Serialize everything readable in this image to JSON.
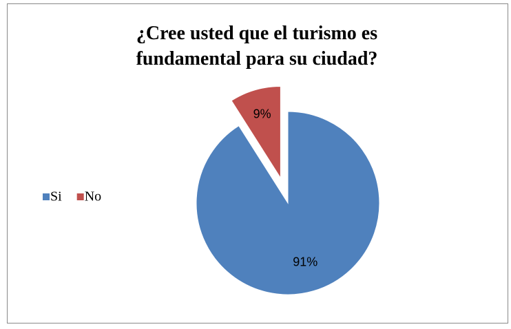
{
  "chart_data": {
    "type": "pie",
    "title": "¿Cree usted que el turismo es fundamental para su ciudad?",
    "categories": [
      "Si",
      "No"
    ],
    "values": [
      91,
      9
    ],
    "value_labels": [
      "91%",
      "9%"
    ],
    "colors": [
      "#4f81bd",
      "#c0504d"
    ],
    "exploded": [
      false,
      true
    ],
    "legend": "left"
  }
}
